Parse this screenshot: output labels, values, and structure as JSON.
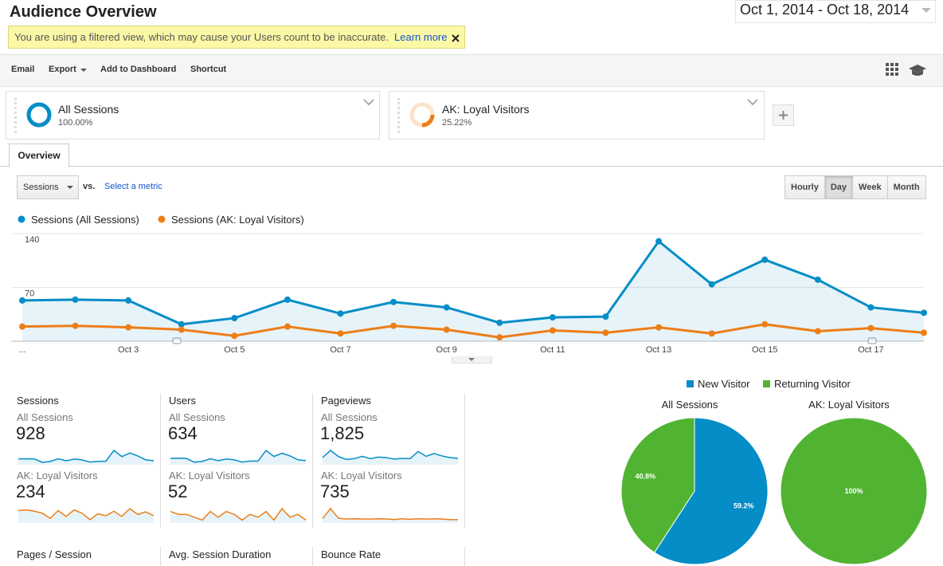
{
  "header": {
    "title": "Audience Overview",
    "date_range": "Oct 1, 2014 - Oct 18, 2014",
    "notice": "You are using a filtered view, which may cause your Users count to be inaccurate.",
    "notice_link": "Learn more"
  },
  "toolbar": [
    "Email",
    "Export",
    "Add to Dashboard",
    "Shortcut"
  ],
  "segments": [
    {
      "name": "All Sessions",
      "percent": "100.00%"
    },
    {
      "name": "AK: Loyal Visitors",
      "percent": "25.22%"
    }
  ],
  "tab": "Overview",
  "metric_picker": {
    "metric": "Sessions",
    "vs": "vs.",
    "select": "Select a metric"
  },
  "granularity": [
    "Hourly",
    "Day",
    "Week",
    "Month"
  ],
  "line_chart": {
    "type": "line",
    "categories": [
      "...",
      null,
      "Oct 3",
      null,
      "Oct 5",
      null,
      "Oct 7",
      null,
      "Oct 9",
      null,
      "Oct 11",
      null,
      "Oct 13",
      null,
      "Oct 15",
      null,
      "Oct 17",
      null
    ],
    "series": [
      {
        "name": "Sessions (All Sessions)",
        "color": "#058dc7",
        "values": [
          53,
          54,
          53,
          22,
          30,
          54,
          36,
          51,
          44,
          24,
          31,
          32,
          130,
          74,
          106,
          80,
          44,
          37
        ]
      },
      {
        "name": "Sessions (AK: Loyal Visitors)",
        "color": "#ed7e17",
        "values": [
          19,
          20,
          18,
          15,
          7,
          19,
          10,
          20,
          15,
          5,
          14,
          11,
          18,
          10,
          22,
          13,
          17,
          11
        ]
      }
    ],
    "ylim": [
      0,
      140
    ],
    "yticks": [
      70,
      140
    ],
    "grid": true
  },
  "metrics": [
    {
      "label": "Sessions",
      "rows": [
        {
          "segment": "All Sessions",
          "value": "928",
          "trend": [
            53,
            54,
            53,
            22,
            30,
            54,
            36,
            51,
            44,
            24,
            31,
            32,
            130,
            74,
            106,
            80,
            44,
            37
          ]
        },
        {
          "segment": "AK: Loyal Visitors",
          "value": "234",
          "trend": [
            19,
            20,
            18,
            15,
            7,
            19,
            10,
            20,
            15,
            5,
            14,
            11,
            18,
            10,
            22,
            13,
            17,
            11
          ]
        }
      ]
    },
    {
      "label": "Users",
      "rows": [
        {
          "segment": "All Sessions",
          "value": "634",
          "trend": [
            40,
            41,
            40,
            16,
            21,
            38,
            26,
            36,
            31,
            17,
            23,
            23,
            90,
            52,
            72,
            56,
            31,
            26
          ]
        },
        {
          "segment": "AK: Loyal Visitors",
          "value": "52",
          "trend": [
            4,
            3,
            3,
            2,
            1,
            4,
            2,
            4,
            3,
            1,
            3,
            2,
            4,
            1,
            5,
            2,
            3,
            1
          ]
        }
      ]
    },
    {
      "label": "Pageviews",
      "rows": [
        {
          "segment": "All Sessions",
          "value": "1,825",
          "trend": [
            70,
            140,
            80,
            52,
            60,
            82,
            60,
            75,
            70,
            55,
            62,
            60,
            130,
            82,
            110,
            86,
            70,
            62
          ]
        },
        {
          "segment": "AK: Loyal Visitors",
          "value": "735",
          "trend": [
            40,
            130,
            42,
            36,
            38,
            36,
            35,
            38,
            36,
            32,
            38,
            33,
            38,
            35,
            38,
            35,
            31,
            30
          ]
        }
      ]
    },
    {
      "label": "Pages / Session"
    },
    {
      "label": "Avg. Session Duration"
    },
    {
      "label": "Bounce Rate"
    }
  ],
  "pie_chart": {
    "type": "pie",
    "legend": [
      {
        "name": "New Visitor",
        "color": "#058dc7"
      },
      {
        "name": "Returning Visitor",
        "color": "#50b432"
      }
    ],
    "pies": [
      {
        "title": "All Sessions",
        "values": [
          59.2,
          40.8
        ],
        "value_labels": [
          "59.2%",
          "40.8%"
        ]
      },
      {
        "title": "AK: Loyal Visitors",
        "values": [
          0,
          100
        ],
        "value_labels": [
          null,
          "100%"
        ]
      }
    ]
  }
}
